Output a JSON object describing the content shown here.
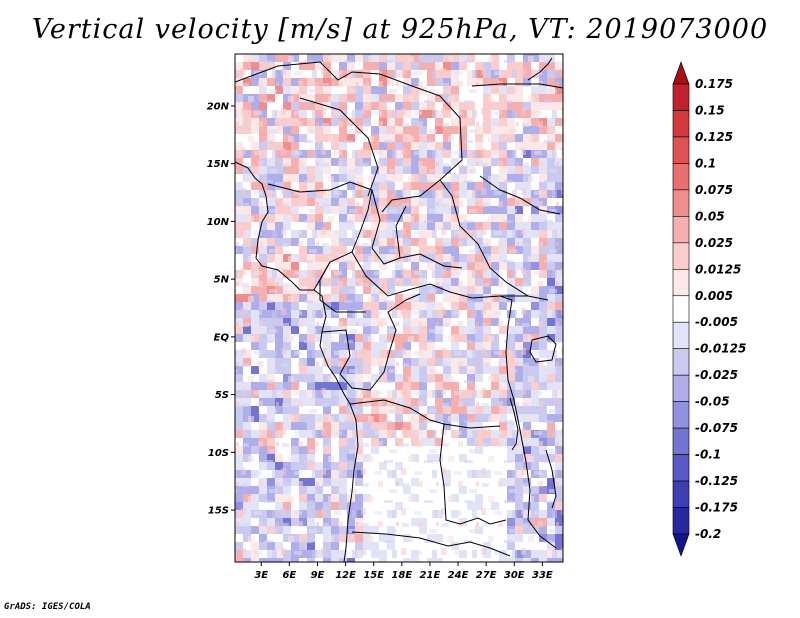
{
  "map": {
    "title": "Vertical velocity [m/s] at 925hPa, VT: 2019073000",
    "credit": "GrADS: IGES/COLA",
    "lat_ticks": [
      {
        "value": 20,
        "label": "20N"
      },
      {
        "value": 15,
        "label": "15N"
      },
      {
        "value": 10,
        "label": "10N"
      },
      {
        "value": 5,
        "label": "5N"
      },
      {
        "value": 0,
        "label": "EQ"
      },
      {
        "value": -5,
        "label": "5S"
      },
      {
        "value": -10,
        "label": "10S"
      },
      {
        "value": -15,
        "label": "15S"
      }
    ],
    "lon_ticks": [
      {
        "value": 3,
        "label": "3E"
      },
      {
        "value": 6,
        "label": "6E"
      },
      {
        "value": 9,
        "label": "9E"
      },
      {
        "value": 12,
        "label": "12E"
      },
      {
        "value": 15,
        "label": "15E"
      },
      {
        "value": 18,
        "label": "18E"
      },
      {
        "value": 21,
        "label": "21E"
      },
      {
        "value": 24,
        "label": "24E"
      },
      {
        "value": 27,
        "label": "27E"
      },
      {
        "value": 30,
        "label": "30E"
      },
      {
        "value": 33,
        "label": "33E"
      }
    ],
    "lat_range": [
      -19.5,
      24.5
    ],
    "lon_range": [
      0.2,
      35.2
    ]
  },
  "colorbar": {
    "colors": [
      "#a50f15",
      "#c0212a",
      "#d3393b",
      "#e05252",
      "#e87070",
      "#f08e8e",
      "#f6aeae",
      "#facccc",
      "#fde8e8",
      "#ffffff",
      "#e3e3f8",
      "#cacaf1",
      "#aeaeea",
      "#9191e0",
      "#7474d4",
      "#5858c6",
      "#3e3eb6",
      "#2727a2",
      "#14148a"
    ],
    "labels": [
      "0.175",
      "0.15",
      "0.125",
      "0.1",
      "0.075",
      "0.05",
      "0.025",
      "0.0125",
      "0.005",
      "-0.005",
      "-0.0125",
      "-0.025",
      "-0.05",
      "-0.075",
      "-0.1",
      "-0.125",
      "-0.175",
      "-0.2"
    ]
  }
}
